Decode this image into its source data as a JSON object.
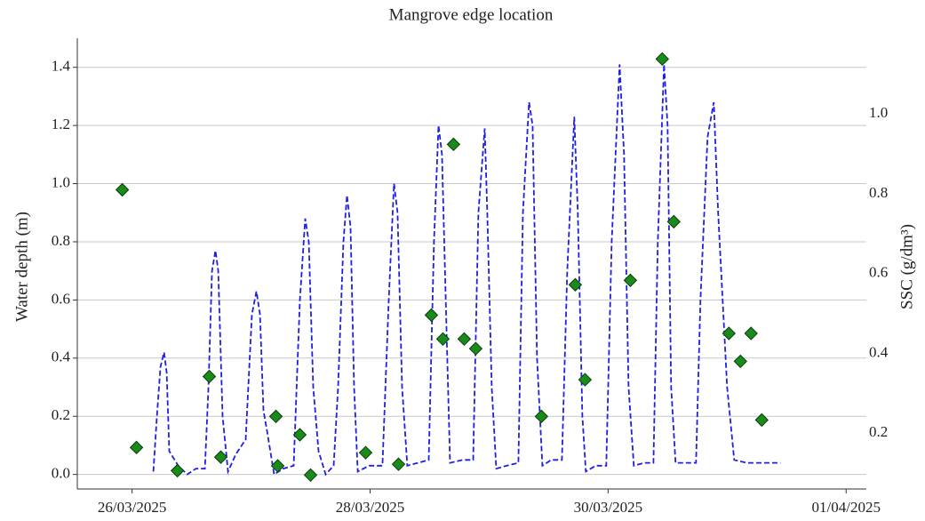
{
  "chart_data": {
    "type": "line",
    "title": "Mangrove edge location",
    "ylabel": "Water depth (m)",
    "y2label": "SSC (g/dm³)",
    "xlim": [
      -0.46,
      6.17
    ],
    "xticks": [
      {
        "value": 0,
        "label": "26/03/2025"
      },
      {
        "value": 2,
        "label": "28/03/2025"
      },
      {
        "value": 4,
        "label": "30/03/2025"
      },
      {
        "value": 6,
        "label": "01/04/2025"
      }
    ],
    "ylim": [
      -0.05,
      1.5
    ],
    "yticks": [
      {
        "value": 0,
        "label": "0.0"
      },
      0.2,
      0.4,
      0.6,
      0.8,
      {
        "value": 1,
        "label": "1.0"
      },
      1.2,
      1.4
    ],
    "y2lim": [
      0.06,
      1.19
    ],
    "y2ticks": [
      0.2,
      0.4,
      0.6,
      0.8,
      {
        "value": 1,
        "label": "1.0"
      }
    ],
    "grid": true,
    "series": [
      {
        "type": "line",
        "linestyle": "dashed",
        "color": "#1f1fe6",
        "x": [
          0.179,
          0.209,
          0.239,
          0.269,
          0.291,
          0.313,
          0.388,
          0.463,
          0.537,
          0.612,
          0.642,
          0.672,
          0.701,
          0.724,
          0.761,
          0.806,
          0.873,
          0.955,
          1.007,
          1.045,
          1.075,
          1.104,
          1.134,
          1.194,
          1.269,
          1.358,
          1.41,
          1.455,
          1.485,
          1.522,
          1.567,
          1.627,
          1.694,
          1.731,
          1.776,
          1.806,
          1.836,
          1.866,
          1.896,
          1.993,
          2.104,
          2.157,
          2.201,
          2.231,
          2.269,
          2.313,
          2.403,
          2.493,
          2.537,
          2.575,
          2.604,
          2.642,
          2.672,
          2.776,
          2.866,
          2.91,
          2.963,
          2.985,
          3.022,
          3.06,
          3.149,
          3.246,
          3.284,
          3.336,
          3.366,
          3.403,
          3.448,
          3.522,
          3.612,
          3.657,
          3.716,
          3.746,
          3.784,
          3.813,
          3.896,
          3.985,
          4.03,
          4.097,
          4.134,
          4.172,
          4.216,
          4.306,
          4.381,
          4.418,
          4.47,
          4.5,
          4.53,
          4.567,
          4.642,
          4.739,
          4.776,
          4.836,
          4.888,
          4.925,
          5.0,
          5.06,
          5.164,
          5.448
        ],
        "values": [
          0.01,
          0.2,
          0.37,
          0.42,
          0.35,
          0.08,
          0.03,
          0.0,
          0.02,
          0.02,
          0.3,
          0.7,
          0.77,
          0.7,
          0.2,
          0.01,
          0.07,
          0.12,
          0.55,
          0.63,
          0.55,
          0.22,
          0.15,
          0.0,
          0.02,
          0.03,
          0.6,
          0.88,
          0.8,
          0.3,
          0.08,
          0.0,
          0.03,
          0.3,
          0.8,
          0.96,
          0.85,
          0.3,
          0.01,
          0.03,
          0.03,
          0.6,
          1.0,
          0.9,
          0.3,
          0.03,
          0.04,
          0.05,
          0.8,
          1.2,
          1.1,
          0.5,
          0.04,
          0.05,
          0.05,
          0.9,
          1.19,
          0.9,
          0.3,
          0.02,
          0.03,
          0.04,
          0.9,
          1.28,
          1.2,
          0.4,
          0.03,
          0.05,
          0.05,
          0.7,
          1.23,
          0.9,
          0.2,
          0.01,
          0.03,
          0.03,
          0.8,
          1.41,
          1.1,
          0.3,
          0.03,
          0.04,
          0.04,
          0.8,
          1.41,
          1.2,
          0.3,
          0.04,
          0.04,
          0.04,
          0.6,
          1.16,
          1.28,
          0.9,
          0.3,
          0.05,
          0.04,
          0.04
        ]
      },
      {
        "type": "scatter",
        "marker": "diamond",
        "color": "#1a8a1a",
        "axis": "y2",
        "x": [
          -0.082,
          0.037,
          0.381,
          0.649,
          0.746,
          1.209,
          1.224,
          1.41,
          1.5,
          1.963,
          2.239,
          2.515,
          2.612,
          2.701,
          2.791,
          2.888,
          3.44,
          3.724,
          3.806,
          4.187,
          4.455,
          4.552,
          5.015,
          5.112,
          5.201,
          5.291
        ],
        "values": [
          0.81,
          0.164,
          0.106,
          0.342,
          0.14,
          0.242,
          0.118,
          0.196,
          0.095,
          0.151,
          0.122,
          0.496,
          0.436,
          0.924,
          0.436,
          0.412,
          0.242,
          0.572,
          0.334,
          0.583,
          1.138,
          0.73,
          0.45,
          0.38,
          0.45,
          0.233
        ]
      }
    ]
  }
}
